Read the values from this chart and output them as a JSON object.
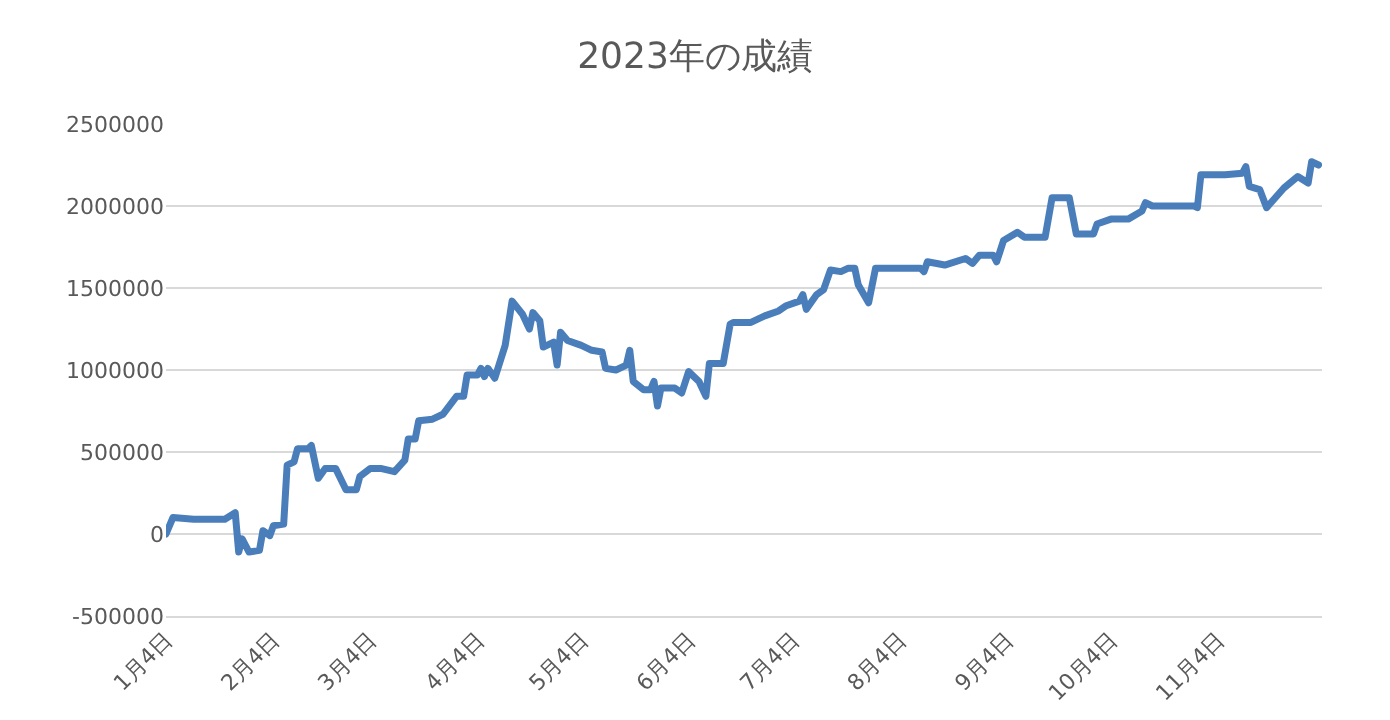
{
  "chart_data": {
    "type": "line",
    "title": "2023年の成績",
    "x": [
      "2023-01-04",
      "2023-01-06",
      "2023-01-12",
      "2023-01-21",
      "2023-01-24",
      "2023-01-25",
      "2023-01-26",
      "2023-01-28",
      "2023-01-31",
      "2023-02-01",
      "2023-02-03",
      "2023-02-04",
      "2023-02-07",
      "2023-02-08",
      "2023-02-10",
      "2023-02-11",
      "2023-02-14",
      "2023-02-15",
      "2023-02-17",
      "2023-02-19",
      "2023-02-22",
      "2023-02-25",
      "2023-02-28",
      "2023-03-01",
      "2023-03-04",
      "2023-03-07",
      "2023-03-11",
      "2023-03-14",
      "2023-03-15",
      "2023-03-17",
      "2023-03-18",
      "2023-03-22",
      "2023-03-25",
      "2023-03-29",
      "2023-03-31",
      "2023-04-01",
      "2023-04-04",
      "2023-04-05",
      "2023-04-06",
      "2023-04-07",
      "2023-04-09",
      "2023-04-12",
      "2023-04-14",
      "2023-04-17",
      "2023-04-19",
      "2023-04-20",
      "2023-04-22",
      "2023-04-23",
      "2023-04-26",
      "2023-04-27",
      "2023-04-28",
      "2023-04-30",
      "2023-05-04",
      "2023-05-07",
      "2023-05-10",
      "2023-05-11",
      "2023-05-14",
      "2023-05-17",
      "2023-05-18",
      "2023-05-19",
      "2023-05-22",
      "2023-05-24",
      "2023-05-25",
      "2023-05-26",
      "2023-05-27",
      "2023-05-31",
      "2023-06-02",
      "2023-06-04",
      "2023-06-07",
      "2023-06-09",
      "2023-06-10",
      "2023-06-14",
      "2023-06-16",
      "2023-06-17",
      "2023-06-22",
      "2023-06-26",
      "2023-06-30",
      "2023-07-02",
      "2023-07-06",
      "2023-07-07",
      "2023-07-08",
      "2023-07-11",
      "2023-07-13",
      "2023-07-15",
      "2023-07-18",
      "2023-07-20",
      "2023-07-22",
      "2023-07-23",
      "2023-07-26",
      "2023-07-28",
      "2023-08-10",
      "2023-08-11",
      "2023-08-12",
      "2023-08-17",
      "2023-08-23",
      "2023-08-25",
      "2023-08-27",
      "2023-08-31",
      "2023-09-01",
      "2023-09-03",
      "2023-09-07",
      "2023-09-09",
      "2023-09-15",
      "2023-09-17",
      "2023-09-22",
      "2023-09-24",
      "2023-09-29",
      "2023-09-30",
      "2023-10-04",
      "2023-10-09",
      "2023-10-13",
      "2023-10-14",
      "2023-10-16",
      "2023-10-28",
      "2023-10-29",
      "2023-10-30",
      "2023-11-06",
      "2023-11-11",
      "2023-11-12",
      "2023-11-13",
      "2023-11-16",
      "2023-11-18",
      "2023-11-23",
      "2023-11-27",
      "2023-11-30",
      "2023-12-01",
      "2023-12-03"
    ],
    "series": [
      {
        "color": "#4a7ebb",
        "values": [
          0,
          100000,
          90000,
          90000,
          130000,
          -110000,
          -30000,
          -110000,
          -100000,
          20000,
          -10000,
          50000,
          60000,
          420000,
          440000,
          520000,
          520000,
          540000,
          340000,
          400000,
          400000,
          270000,
          270000,
          350000,
          400000,
          400000,
          380000,
          450000,
          580000,
          580000,
          690000,
          700000,
          730000,
          840000,
          840000,
          970000,
          970000,
          1010000,
          960000,
          1010000,
          950000,
          1150000,
          1420000,
          1340000,
          1250000,
          1350000,
          1300000,
          1140000,
          1170000,
          1030000,
          1230000,
          1180000,
          1150000,
          1120000,
          1110000,
          1010000,
          1000000,
          1030000,
          1120000,
          930000,
          880000,
          880000,
          930000,
          780000,
          890000,
          890000,
          860000,
          990000,
          930000,
          840000,
          1040000,
          1040000,
          1280000,
          1290000,
          1290000,
          1330000,
          1360000,
          1390000,
          1420000,
          1460000,
          1370000,
          1460000,
          1490000,
          1610000,
          1600000,
          1620000,
          1620000,
          1520000,
          1410000,
          1620000,
          1620000,
          1600000,
          1660000,
          1640000,
          1680000,
          1650000,
          1700000,
          1700000,
          1660000,
          1790000,
          1840000,
          1810000,
          1810000,
          2050000,
          2050000,
          1830000,
          1830000,
          1890000,
          1920000,
          1920000,
          1970000,
          2020000,
          2000000,
          2000000,
          1990000,
          2190000,
          2190000,
          2200000,
          2240000,
          2120000,
          2100000,
          1990000,
          2110000,
          2180000,
          2140000,
          2270000,
          2250000
        ]
      }
    ],
    "xlim": [
      "2023-01-04",
      "2023-12-04"
    ],
    "xticks": [
      {
        "value": "2023-01-04",
        "label": "1月4日"
      },
      {
        "value": "2023-02-04",
        "label": "2月4日"
      },
      {
        "value": "2023-03-04",
        "label": "3月4日"
      },
      {
        "value": "2023-04-04",
        "label": "4月4日"
      },
      {
        "value": "2023-05-04",
        "label": "5月4日"
      },
      {
        "value": "2023-06-04",
        "label": "6月4日"
      },
      {
        "value": "2023-07-04",
        "label": "7月4日"
      },
      {
        "value": "2023-08-04",
        "label": "8月4日"
      },
      {
        "value": "2023-09-04",
        "label": "9月4日"
      },
      {
        "value": "2023-10-04",
        "label": "10月4日"
      },
      {
        "value": "2023-11-04",
        "label": "11月4日"
      }
    ],
    "ylim": [
      -500000,
      2500000
    ],
    "yticks": [
      -500000,
      0,
      500000,
      1000000,
      1500000,
      2000000,
      2500000
    ],
    "grid": "y"
  }
}
